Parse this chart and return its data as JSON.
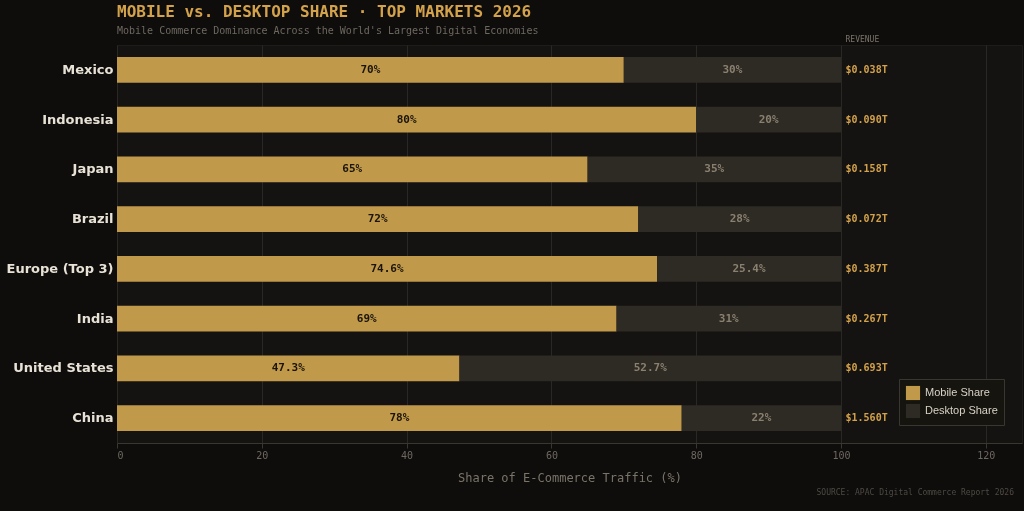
{
  "chart_data": {
    "type": "bar",
    "orientation": "horizontal",
    "stacked": true,
    "title": "MOBILE vs. DESKTOP SHARE  ·  TOP MARKETS 2026",
    "subtitle": "Mobile Commerce Dominance Across the World's Largest Digital Economies",
    "xlabel": "Share of E-Commerce Traffic (%)",
    "categories": [
      "Mexico",
      "Indonesia",
      "Japan",
      "Brazil",
      "Europe (Top 3)",
      "India",
      "United States",
      "China"
    ],
    "series": [
      {
        "name": "Mobile Share",
        "color": "#c0994b",
        "values": [
          70,
          80,
          65,
          72,
          74.6,
          69,
          47.3,
          78
        ],
        "value_labels": [
          "70%",
          "80%",
          "65%",
          "72%",
          "74.6%",
          "69%",
          "47.3%",
          "78%"
        ]
      },
      {
        "name": "Desktop Share",
        "color": "#2e2a24",
        "values": [
          30,
          20,
          35,
          28,
          25.4,
          31,
          52.7,
          22
        ],
        "value_labels": [
          "30%",
          "20%",
          "35%",
          "28%",
          "25.4%",
          "31%",
          "52.7%",
          "22%"
        ]
      }
    ],
    "xlim": [
      0,
      125
    ],
    "xticks": [
      0,
      20,
      40,
      60,
      80,
      100,
      120
    ],
    "grid": "x",
    "legend": "bottom right",
    "annotations": [
      "REVENUE",
      "$0.038T",
      "$0.090T",
      "$0.158T",
      "$0.072T",
      "$0.387T",
      "$0.267T",
      "$0.693T",
      "$1.560T",
      "SOURCE: APAC Digital Commerce Report 2026"
    ]
  }
}
